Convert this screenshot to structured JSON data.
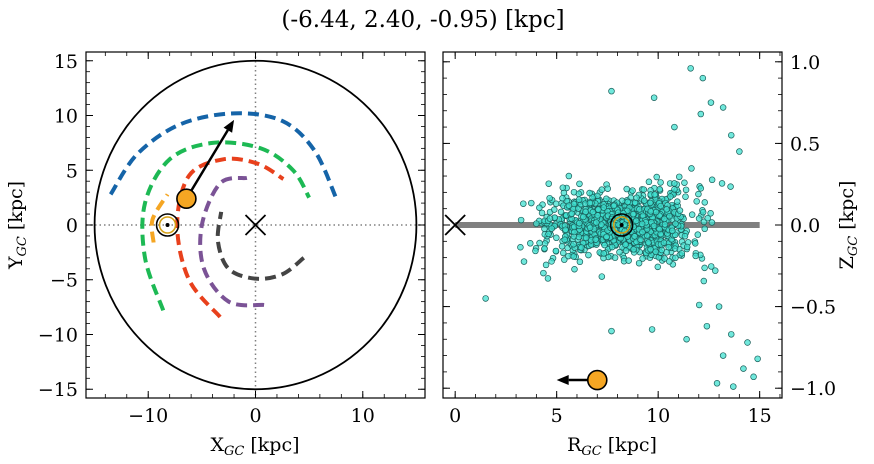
{
  "figure": {
    "title": "(-6.44, 2.40, -0.95) [kpc]"
  },
  "chart_data": [
    {
      "type": "scatter",
      "panel": "left",
      "xlabel": "X_{GC} [kpc]",
      "ylabel": "Y_{GC} [kpc]",
      "xlim": [
        -15.8,
        15.8
      ],
      "ylim": [
        -15.8,
        15.8
      ],
      "xticks": [
        -10,
        0,
        10
      ],
      "yticks": [
        -15,
        -10,
        -5,
        0,
        5,
        10,
        15
      ],
      "tick_labels_x": [
        "−10",
        "0",
        "10"
      ],
      "tick_labels_y": [
        "−15",
        "−10",
        "−5",
        "0",
        "5",
        "10",
        "15"
      ],
      "grid": false,
      "reference_lines": {
        "x": 0,
        "y": 0,
        "style": "dotted",
        "color": "#808080"
      },
      "outer_circle": {
        "center": [
          0,
          0
        ],
        "radius": 15,
        "color": "#000000"
      },
      "galactic_center_marker": {
        "x": 0,
        "y": 0,
        "marker": "x"
      },
      "sun_marker": {
        "x": -8.2,
        "y": 0,
        "marker": "circled-dot"
      },
      "object_marker": {
        "x": -6.44,
        "y": 2.4,
        "color": "#f5a623"
      },
      "velocity_arrow": {
        "from": [
          -6.44,
          2.4
        ],
        "to": [
          -2.0,
          9.6
        ]
      },
      "spiral_arms": [
        {
          "color": "#1564a8",
          "points": [
            [
              -13.5,
              2.8
            ],
            [
              -11,
              6.5
            ],
            [
              -7,
              9.2
            ],
            [
              -2,
              10.2
            ],
            [
              2.5,
              9.5
            ],
            [
              5.5,
              6.8
            ],
            [
              7.5,
              2.5
            ]
          ]
        },
        {
          "color": "#1db954",
          "points": [
            [
              -8.6,
              -7.8
            ],
            [
              -10.3,
              -3
            ],
            [
              -10.3,
              2
            ],
            [
              -8,
              6
            ],
            [
              -4,
              7.5
            ],
            [
              0.5,
              7
            ],
            [
              3.5,
              5
            ],
            [
              5,
              2.5
            ]
          ]
        },
        {
          "color": "#e8401c",
          "points": [
            [
              -3.3,
              -8.4
            ],
            [
              -6.2,
              -5
            ],
            [
              -7.3,
              0
            ],
            [
              -6.2,
              4.5
            ],
            [
              -3,
              6
            ],
            [
              0.2,
              5.6
            ],
            [
              2.6,
              4.2
            ]
          ]
        },
        {
          "color": "#7b5396",
          "points": [
            [
              0.8,
              -7.3
            ],
            [
              -2.5,
              -7
            ],
            [
              -4.8,
              -4
            ],
            [
              -5,
              0
            ],
            [
              -3.3,
              3.8
            ],
            [
              -0.8,
              4.3
            ]
          ]
        },
        {
          "color": "#f5a623",
          "points": [
            [
              -9.5,
              -1.6
            ],
            [
              -9.6,
              0.5
            ],
            [
              -8.2,
              2.8
            ]
          ]
        },
        {
          "color": "#444444",
          "points": [
            [
              4.5,
              -3
            ],
            [
              2.5,
              -4.5
            ],
            [
              0,
              -4.9
            ],
            [
              -2.5,
              -4
            ],
            [
              -3.5,
              -1.5
            ],
            [
              -3.2,
              1.2
            ]
          ]
        }
      ]
    },
    {
      "type": "scatter",
      "panel": "right",
      "xlabel": "R_{GC} [kpc]",
      "ylabel": "Z_{GC} [kpc]",
      "xlim": [
        -0.6,
        16.1
      ],
      "ylim": [
        -1.06,
        1.06
      ],
      "xticks": [
        0,
        5,
        10,
        15
      ],
      "yticks": [
        -1.0,
        -0.5,
        0.0,
        0.5,
        1.0
      ],
      "tick_labels_x": [
        "0",
        "5",
        "10",
        "15"
      ],
      "tick_labels_y": [
        "−1.0",
        "−0.5",
        "0.0",
        "0.5",
        "1.0"
      ],
      "y_axis_side": "right",
      "grid": false,
      "disk_line": {
        "x": [
          0,
          15
        ],
        "y": 0,
        "color": "#808080"
      },
      "galactic_center_marker": {
        "x": 0,
        "y": 0,
        "marker": "x"
      },
      "sun_marker": {
        "x": 8.2,
        "y": 0,
        "marker": "circled-dot"
      },
      "object_marker": {
        "x": 7.0,
        "y": -0.95,
        "color": "#f5a623"
      },
      "velocity_arrow": {
        "from": [
          7.0,
          -0.95
        ],
        "to": [
          5.0,
          -0.95
        ]
      },
      "point_color": "#40e0d0",
      "point_edge": "#1a5f5a",
      "cluster": {
        "center": [
          8.2,
          0.0
        ],
        "count": 1400,
        "x_range": [
          3.2,
          15.5
        ],
        "y_spread_at_center": 0.12,
        "y_spread_at_edge": 0.55,
        "flaring": true
      },
      "outliers": [
        [
          1.5,
          -0.45
        ],
        [
          5.6,
          0.3
        ],
        [
          7.7,
          0.82
        ],
        [
          9.8,
          0.78
        ],
        [
          10.8,
          0.6
        ],
        [
          11.6,
          0.96
        ],
        [
          12.2,
          0.9
        ],
        [
          12.6,
          0.75
        ],
        [
          13.2,
          0.72
        ],
        [
          13.6,
          0.55
        ],
        [
          12.4,
          -0.62
        ],
        [
          13.6,
          -0.67
        ],
        [
          12.9,
          -0.97
        ],
        [
          13.7,
          -0.99
        ],
        [
          14.7,
          -0.93
        ],
        [
          14.9,
          -0.82
        ],
        [
          14.4,
          -0.72
        ],
        [
          7.7,
          -0.65
        ],
        [
          9.7,
          -0.64
        ],
        [
          13.2,
          -0.8
        ],
        [
          14.2,
          -0.88
        ],
        [
          13.0,
          -0.5
        ],
        [
          12.1,
          0.68
        ],
        [
          14.0,
          0.45
        ],
        [
          11.4,
          -0.7
        ]
      ]
    }
  ]
}
